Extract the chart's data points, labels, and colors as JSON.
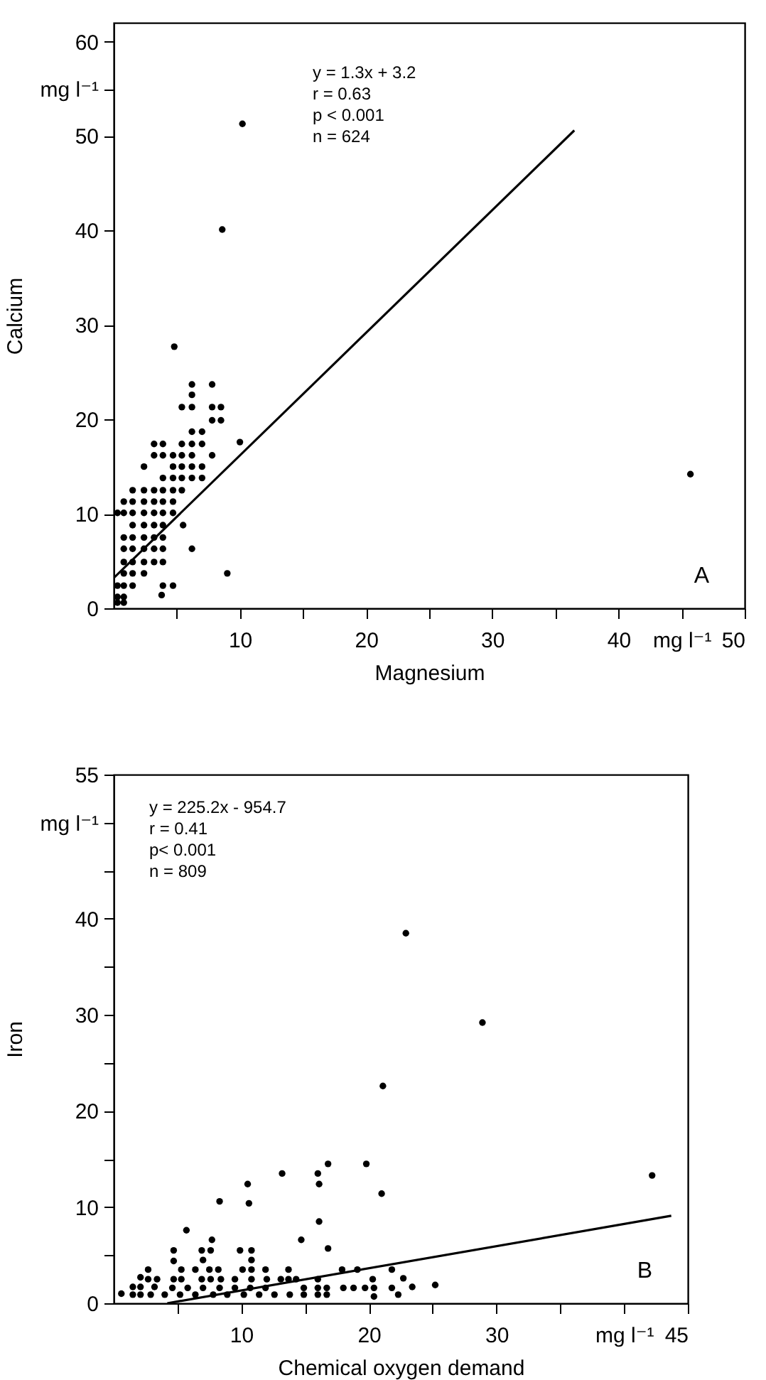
{
  "chart_data": [
    {
      "type": "scatter",
      "xlabel": "Magnesium",
      "ylabel": "Calcium",
      "xlim": [
        0,
        50
      ],
      "ylim": [
        0,
        62
      ],
      "xticks": [
        {
          "value": 5,
          "label": null
        },
        10,
        {
          "value": 15,
          "label": null
        },
        20,
        {
          "value": 25,
          "label": null
        },
        30,
        {
          "value": 35,
          "label": null
        },
        40,
        {
          "value": 45,
          "label": "mg l⁻¹"
        },
        50
      ],
      "yticks": [
        0,
        10,
        20,
        30,
        40,
        50,
        {
          "value": 55,
          "label": "mg l⁻¹"
        },
        60
      ],
      "grid": false,
      "annotations": [
        "y = 1.3x + 3.2",
        "r = 0.63",
        "p < 0.001",
        "n = 624",
        "A"
      ],
      "series": [
        {
          "type": "scatter",
          "marker": "circle",
          "color": "#000000",
          "x": [
            6.2,
            7.8,
            6.2,
            5.4,
            6.2,
            7.8,
            8.5,
            7.8,
            8.5,
            6.2,
            7.0,
            3.2,
            3.9,
            5.4,
            6.2,
            7.0,
            10.0,
            3.2,
            3.9,
            4.7,
            5.4,
            6.2,
            7.8,
            2.4,
            4.7,
            5.4,
            6.2,
            7.0,
            3.9,
            4.7,
            5.4,
            6.2,
            7.0,
            1.5,
            2.4,
            3.2,
            3.9,
            4.7,
            5.4,
            0.8,
            1.5,
            2.4,
            3.2,
            3.9,
            4.7,
            0.3,
            0.8,
            1.5,
            2.4,
            3.2,
            3.9,
            4.7,
            1.5,
            2.4,
            3.2,
            3.9,
            5.5,
            0.8,
            1.5,
            2.4,
            3.2,
            3.9,
            0.8,
            1.5,
            2.4,
            3.2,
            3.9,
            6.2,
            0.8,
            1.5,
            2.4,
            3.2,
            3.9,
            0.8,
            1.5,
            2.4,
            0.3,
            0.8,
            1.5,
            3.9,
            4.7,
            0.3,
            0.8,
            3.8,
            0.3,
            0.8,
            4.8,
            8.6,
            10.2,
            9.0,
            45.7
          ],
          "values": [
            23.7,
            23.7,
            22.6,
            21.3,
            21.3,
            21.3,
            21.3,
            19.9,
            19.9,
            18.7,
            18.7,
            17.4,
            17.4,
            17.4,
            17.4,
            17.4,
            17.6,
            16.2,
            16.2,
            16.2,
            16.2,
            16.2,
            16.2,
            15.0,
            15.0,
            15.0,
            15.0,
            15.0,
            13.8,
            13.8,
            13.8,
            13.8,
            13.8,
            12.5,
            12.5,
            12.5,
            12.5,
            12.5,
            12.5,
            11.3,
            11.3,
            11.3,
            11.3,
            11.3,
            11.3,
            10.1,
            10.1,
            10.1,
            10.1,
            10.1,
            10.1,
            10.1,
            8.8,
            8.8,
            8.8,
            8.8,
            8.8,
            7.5,
            7.5,
            7.5,
            7.5,
            7.5,
            6.3,
            6.3,
            6.3,
            6.3,
            6.3,
            6.3,
            4.9,
            4.9,
            4.9,
            4.9,
            4.9,
            3.7,
            3.7,
            3.7,
            2.4,
            2.4,
            2.4,
            2.4,
            2.4,
            1.2,
            1.2,
            1.4,
            0.6,
            0.6,
            27.7,
            40.1,
            51.3,
            3.7,
            14.2
          ]
        },
        {
          "type": "line",
          "color": "#000000",
          "line_style": "solid",
          "x": [
            0,
            36.5
          ],
          "values": [
            3.2,
            50.6
          ]
        }
      ]
    },
    {
      "type": "scatter",
      "xlabel": "Chemical oxygen demand",
      "ylabel": "Iron",
      "xlim": [
        0,
        45
      ],
      "ylim": [
        0,
        55
      ],
      "xticks": [
        {
          "value": 5,
          "label": null
        },
        10,
        {
          "value": 15,
          "label": null
        },
        20,
        {
          "value": 25,
          "label": null
        },
        30,
        {
          "value": 35,
          "label": null
        },
        {
          "value": 40,
          "label": "mg l⁻¹"
        },
        45
      ],
      "yticks": [
        0,
        {
          "value": 5,
          "label": null
        },
        10,
        {
          "value": 15,
          "label": null
        },
        20,
        {
          "value": 25,
          "label": null
        },
        30,
        {
          "value": 35,
          "label": null
        },
        40,
        {
          "value": 45,
          "label": null
        },
        {
          "value": 50,
          "label": "mg l⁻¹"
        },
        55
      ],
      "grid": false,
      "annotations": [
        "y = 225.2x - 954.7",
        "r = 0.41",
        "p< 0.001",
        "n = 809",
        "B"
      ],
      "series": [
        {
          "type": "scatter",
          "marker": "circle",
          "color": "#000000",
          "x": [
            22.9,
            28.9,
            21.1,
            42.2,
            19.8,
            16.8,
            16.0,
            16.1,
            13.2,
            10.5,
            10.6,
            8.3,
            21.0,
            16.1,
            5.7,
            14.7,
            16.8,
            7.7,
            0.6,
            1.5,
            1.5,
            2.1,
            2.1,
            2.1,
            2.7,
            2.7,
            2.9,
            3.4,
            3.2,
            4.0,
            4.7,
            4.7,
            4.7,
            4.6,
            5.3,
            5.3,
            5.2,
            5.8,
            6.4,
            6.4,
            6.9,
            7.0,
            6.9,
            7.0,
            7.5,
            7.6,
            7.6,
            7.8,
            8.2,
            8.4,
            8.3,
            8.9,
            9.5,
            9.5,
            9.9,
            10.1,
            10.2,
            10.8,
            10.8,
            10.8,
            10.8,
            10.7,
            11.4,
            11.9,
            12.0,
            11.9,
            12.6,
            13.1,
            13.7,
            13.7,
            13.8,
            14.3,
            14.9,
            14.9,
            16.0,
            16.0,
            16.0,
            16.7,
            16.7,
            17.9,
            18.0,
            18.8,
            19.1,
            19.7,
            20.3,
            20.4,
            20.4,
            21.8,
            21.8,
            22.3,
            22.7,
            23.4,
            25.2
          ],
          "values": [
            38.5,
            29.2,
            22.6,
            13.3,
            14.5,
            14.5,
            13.5,
            12.4,
            13.5,
            12.4,
            10.4,
            10.6,
            11.4,
            8.5,
            7.6,
            6.6,
            5.7,
            6.6,
            1.0,
            1.7,
            0.9,
            2.7,
            1.7,
            0.9,
            3.5,
            2.5,
            0.9,
            2.5,
            1.7,
            0.9,
            5.5,
            4.4,
            2.5,
            1.6,
            3.5,
            2.5,
            0.9,
            1.6,
            3.5,
            0.9,
            5.5,
            4.5,
            2.5,
            1.6,
            3.5,
            5.5,
            2.5,
            0.9,
            3.5,
            2.5,
            1.6,
            0.9,
            2.5,
            1.6,
            5.5,
            3.5,
            0.9,
            5.5,
            4.5,
            3.5,
            2.5,
            1.6,
            0.9,
            3.5,
            2.5,
            1.6,
            0.9,
            2.5,
            3.5,
            2.5,
            0.9,
            2.5,
            1.6,
            0.9,
            2.5,
            1.6,
            0.9,
            1.6,
            0.9,
            3.5,
            1.6,
            1.6,
            3.5,
            1.6,
            2.5,
            1.6,
            0.7,
            3.5,
            1.6,
            0.9,
            2.6,
            1.7,
            1.9
          ]
        },
        {
          "type": "line",
          "color": "#000000",
          "line_style": "solid",
          "x": [
            4.2,
            43.7
          ],
          "values": [
            0,
            9.1
          ]
        }
      ]
    }
  ]
}
